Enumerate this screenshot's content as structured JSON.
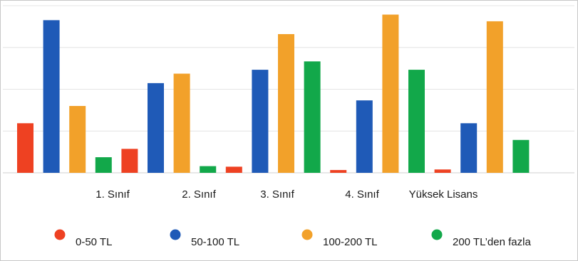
{
  "chart_data": {
    "type": "bar",
    "categories": [
      "1. Sınıf",
      "2. Sınıf",
      "3. Sınıf",
      "4. Sınıf",
      "Yüksek Lisans"
    ],
    "series": [
      {
        "name": "0-50 TL",
        "color": "#ee4122",
        "values": [
          8.9,
          4.3,
          1.1,
          0.5,
          0.6
        ]
      },
      {
        "name": "50-100 TL",
        "color": "#1f5ab7",
        "values": [
          27.4,
          16.1,
          18.5,
          13.0,
          8.9
        ]
      },
      {
        "name": "100-200 TL",
        "color": "#f2a12a",
        "values": [
          12.0,
          17.8,
          24.9,
          28.4,
          27.2
        ]
      },
      {
        "name": "200 TL’den fazla",
        "color": "#12a84a",
        "values": [
          2.8,
          1.2,
          20.0,
          18.5,
          5.9
        ]
      }
    ],
    "title": "",
    "xlabel": "",
    "ylabel": "",
    "ylim": [
      0,
      30
    ],
    "gridlines": true,
    "legend_position": "bottom"
  }
}
